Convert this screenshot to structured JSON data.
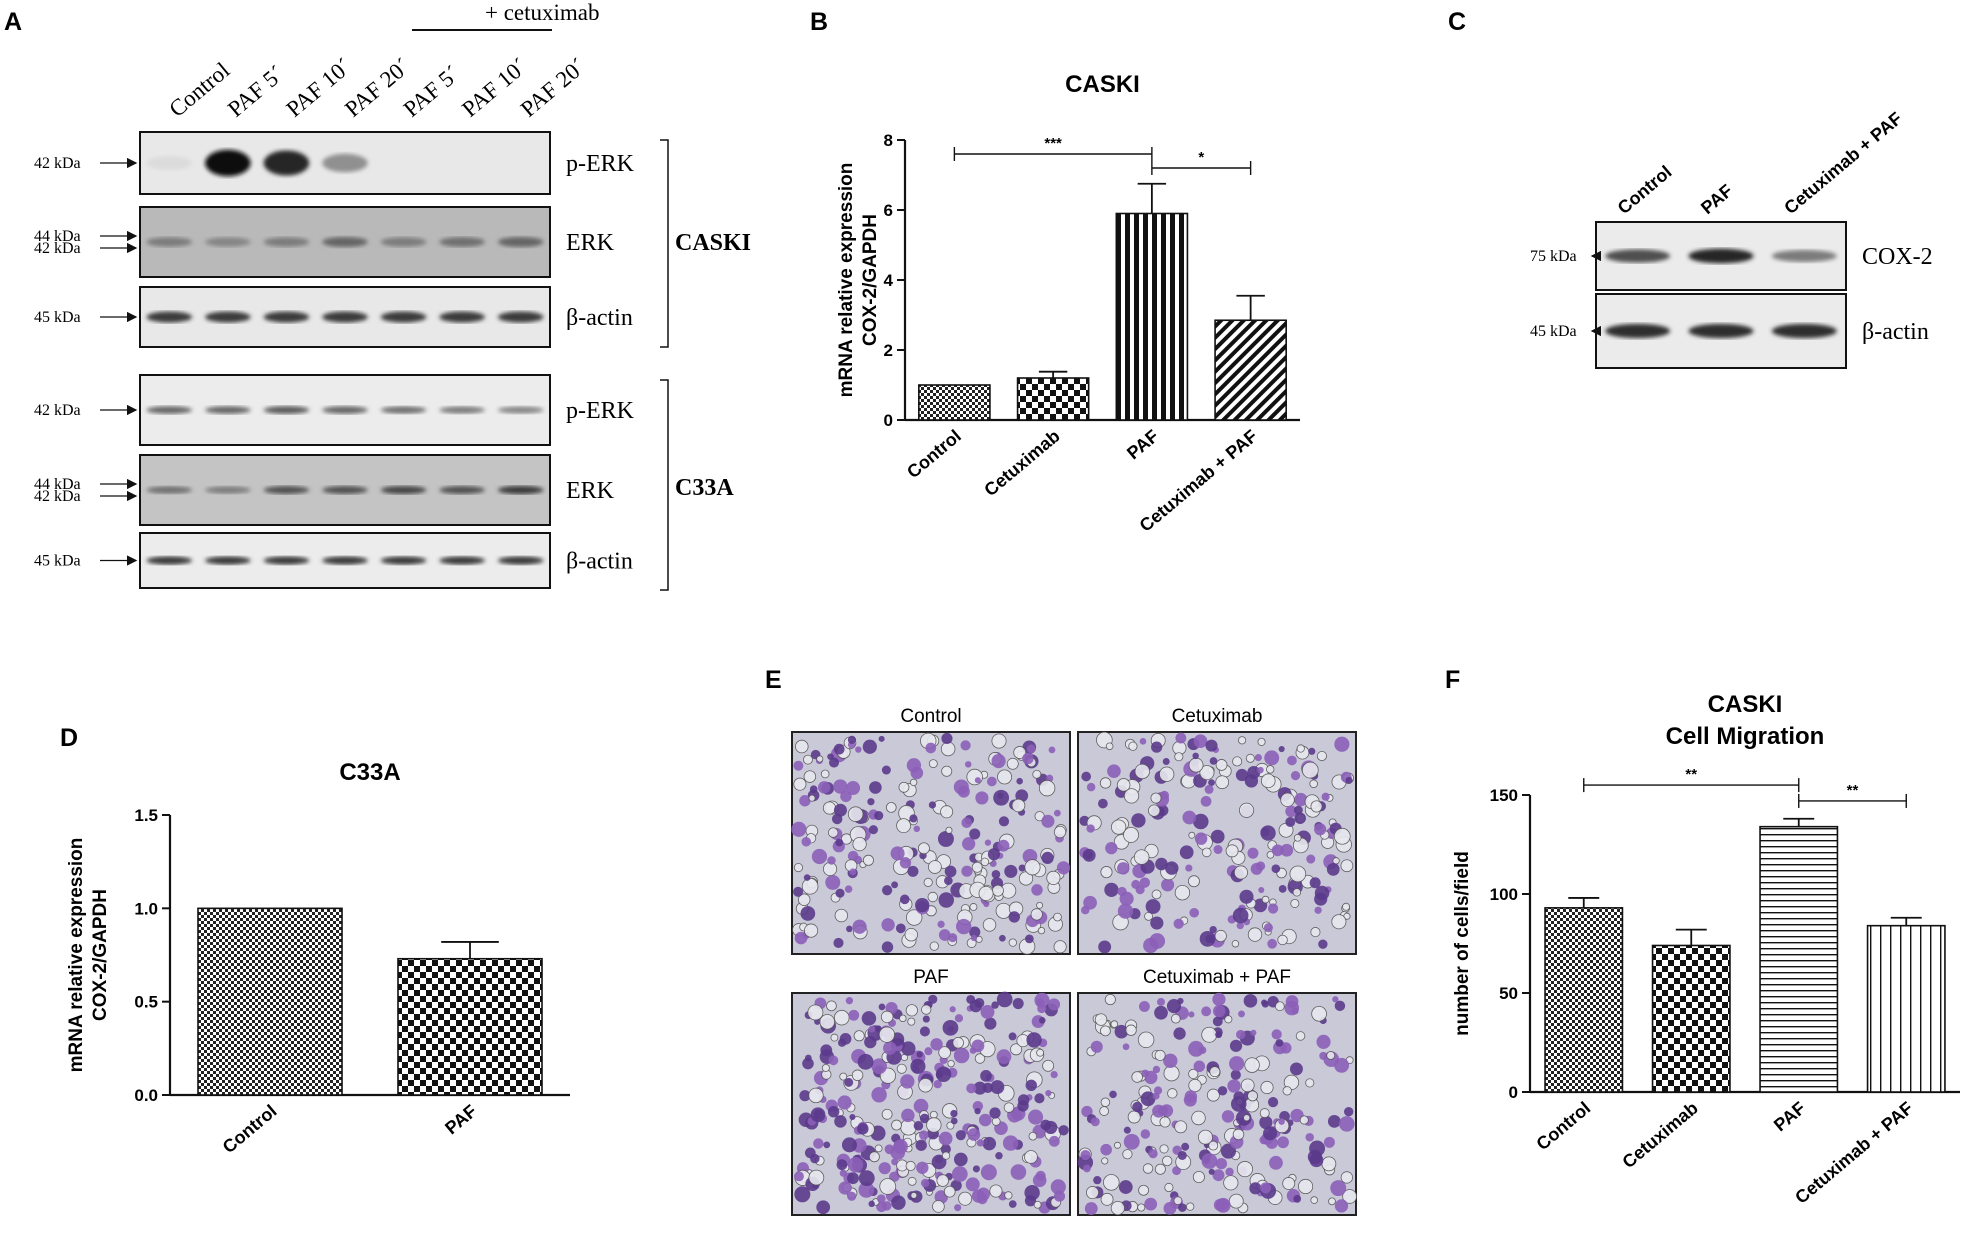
{
  "panel_letters": [
    "A",
    "B",
    "C",
    "D",
    "E",
    "F"
  ],
  "panel_a": {
    "treatment_header": "+ cetuximab",
    "lanes": [
      "Control",
      "PAF 5´",
      "PAF 10´",
      "PAF 20´",
      "PAF 5´",
      "PAF 10´",
      "PAF 20´"
    ],
    "caski": {
      "cell_line": "CASKI",
      "blots": [
        {
          "name": "p-ERK",
          "kda": [
            "42 kDa"
          ],
          "intensity": [
            0.05,
            1.0,
            0.9,
            0.4,
            0.0,
            0.0,
            0.0
          ]
        },
        {
          "name": "ERK",
          "kda": [
            "44 kDa",
            "42 kDa"
          ],
          "intensity": [
            0.5,
            0.45,
            0.5,
            0.6,
            0.5,
            0.55,
            0.6
          ]
        },
        {
          "name": "β-actin",
          "kda": [
            "45 kDa"
          ],
          "intensity": [
            0.8,
            0.8,
            0.8,
            0.8,
            0.8,
            0.8,
            0.8
          ]
        }
      ]
    },
    "c33a": {
      "cell_line": "C33A",
      "blots": [
        {
          "name": "p-ERK",
          "kda": [
            "42 kDa"
          ],
          "intensity": [
            0.6,
            0.6,
            0.65,
            0.6,
            0.55,
            0.5,
            0.45
          ]
        },
        {
          "name": "ERK",
          "kda": [
            "44 kDa",
            "42 kDa"
          ],
          "intensity": [
            0.55,
            0.5,
            0.7,
            0.7,
            0.75,
            0.7,
            0.8
          ]
        },
        {
          "name": "β-actin",
          "kda": [
            "45 kDa"
          ],
          "intensity": [
            0.8,
            0.8,
            0.8,
            0.8,
            0.8,
            0.8,
            0.8
          ]
        }
      ]
    }
  },
  "panel_c": {
    "lanes": [
      "Control",
      "PAF",
      "Cetuximab + PAF"
    ],
    "blots": [
      {
        "name": "COX-2",
        "kda": [
          "75 kDa"
        ],
        "intensity": [
          0.7,
          0.9,
          0.5
        ]
      },
      {
        "name": "β-actin",
        "kda": [
          "45 kDa"
        ],
        "intensity": [
          0.85,
          0.85,
          0.85
        ]
      }
    ]
  },
  "panel_e": {
    "images": [
      {
        "label": "Control",
        "density": 0.55
      },
      {
        "label": "Cetuximab",
        "density": 0.45
      },
      {
        "label": "PAF",
        "density": 0.85
      },
      {
        "label": "Cetuximab + PAF",
        "density": 0.5
      }
    ]
  },
  "chart_data": [
    {
      "type": "bar",
      "panel": "B",
      "title": "CASKI",
      "ylabel": "mRNA relative expression COX-2/GAPDH",
      "ylabel_lines": [
        "mRNA relative expression",
        "COX-2/GAPDH"
      ],
      "categories": [
        "Control",
        "Cetuximab",
        "PAF",
        "Cetuximab + PAF"
      ],
      "values": [
        1.0,
        1.2,
        5.9,
        2.85
      ],
      "errors": [
        0.0,
        0.18,
        0.85,
        0.7
      ],
      "patterns": [
        "fine-check",
        "coarse-check",
        "vertical-bold",
        "diagonal"
      ],
      "ylim": [
        0,
        8
      ],
      "yticks": [
        0,
        2,
        4,
        6,
        8
      ],
      "significance": [
        {
          "from": 0,
          "to": 2,
          "label": "***",
          "y": 7.6
        },
        {
          "from": 2,
          "to": 3,
          "label": "*",
          "y": 7.2
        }
      ]
    },
    {
      "type": "bar",
      "panel": "D",
      "title": "C33A",
      "ylabel": "mRNA relative expression COX-2/GAPDH",
      "ylabel_lines": [
        "mRNA relative expression",
        "COX-2/GAPDH"
      ],
      "categories": [
        "Control",
        "PAF"
      ],
      "values": [
        1.0,
        0.73
      ],
      "errors": [
        0.0,
        0.09
      ],
      "patterns": [
        "fine-check",
        "coarse-check"
      ],
      "ylim": [
        0,
        1.5
      ],
      "yticks": [
        "0.0",
        "0.5",
        "1.0",
        "1.5"
      ]
    },
    {
      "type": "bar",
      "panel": "F",
      "title_lines": [
        "CASKI",
        "Cell Migration"
      ],
      "ylabel": "number of cells/field",
      "categories": [
        "Control",
        "Cetuximab",
        "PAF",
        "Cetuximab + PAF"
      ],
      "values": [
        93,
        74,
        134,
        84
      ],
      "errors": [
        5,
        8,
        4,
        4
      ],
      "patterns": [
        "fine-check",
        "coarse-check",
        "horizontal",
        "vertical"
      ],
      "ylim": [
        0,
        150
      ],
      "yticks": [
        0,
        50,
        100,
        150
      ],
      "significance": [
        {
          "from": 0,
          "to": 2,
          "label": "**",
          "y": 155
        },
        {
          "from": 2,
          "to": 3,
          "label": "**",
          "y": 147
        }
      ]
    }
  ]
}
